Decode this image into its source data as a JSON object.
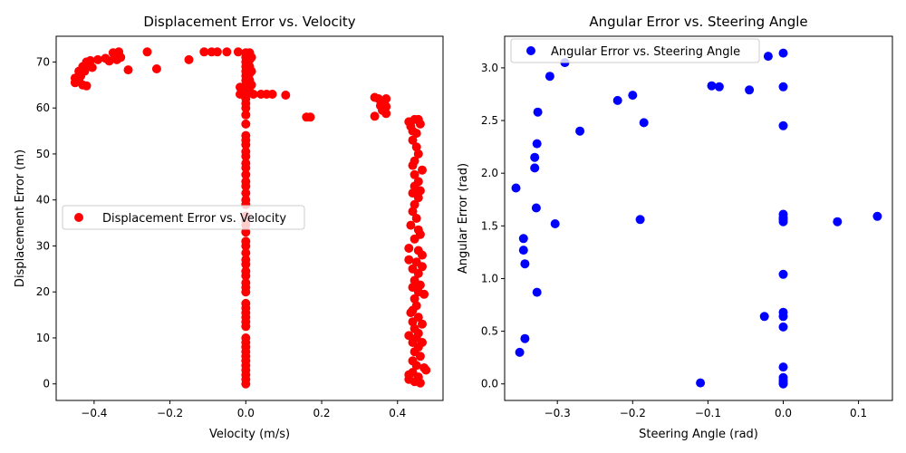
{
  "chart_data": [
    {
      "type": "scatter",
      "title": "Displacement Error vs. Velocity",
      "xlabel": "Velocity (m/s)",
      "ylabel": "Displacement Error (m)",
      "xlim": [
        -0.5,
        0.52
      ],
      "ylim": [
        -3.6,
        75.6
      ],
      "xticks": [
        -0.4,
        -0.2,
        0.0,
        0.2,
        0.4
      ],
      "xtick_labels": [
        "−0.4",
        "−0.2",
        "0.0",
        "0.2",
        "0.4"
      ],
      "yticks": [
        0,
        10,
        20,
        30,
        40,
        50,
        60,
        70
      ],
      "ytick_labels": [
        "0",
        "10",
        "20",
        "30",
        "40",
        "50",
        "60",
        "70"
      ],
      "grid": false,
      "legend_position": "center-left",
      "color": "#ff0000",
      "series": [
        {
          "name": "Displacement Error vs. Velocity",
          "points": [
            [
              -0.45,
              66.5
            ],
            [
              -0.45,
              65.5
            ],
            [
              -0.44,
              68.0
            ],
            [
              -0.44,
              66.0
            ],
            [
              -0.435,
              67.0
            ],
            [
              -0.43,
              69.0
            ],
            [
              -0.43,
              65.0
            ],
            [
              -0.425,
              68.0
            ],
            [
              -0.42,
              70.0
            ],
            [
              -0.42,
              64.8
            ],
            [
              -0.415,
              69.5
            ],
            [
              -0.41,
              70.3
            ],
            [
              -0.405,
              68.8
            ],
            [
              -0.39,
              70.5
            ],
            [
              -0.37,
              70.8
            ],
            [
              -0.36,
              70.2
            ],
            [
              -0.35,
              72.0
            ],
            [
              -0.345,
              71.2
            ],
            [
              -0.34,
              70.5
            ],
            [
              -0.335,
              72.2
            ],
            [
              -0.33,
              71.0
            ],
            [
              -0.31,
              68.3
            ],
            [
              -0.26,
              72.2
            ],
            [
              -0.235,
              68.5
            ],
            [
              -0.15,
              70.5
            ],
            [
              -0.11,
              72.2
            ],
            [
              -0.09,
              72.2
            ],
            [
              -0.075,
              72.2
            ],
            [
              -0.05,
              72.2
            ],
            [
              -0.02,
              72.2
            ],
            [
              -0.015,
              64.5
            ],
            [
              -0.015,
              63.0
            ],
            [
              -0.01,
              63.5
            ],
            [
              0.02,
              63.0
            ],
            [
              0.04,
              63.0
            ],
            [
              0.055,
              63.0
            ],
            [
              0.07,
              63.0
            ],
            [
              0.105,
              62.8
            ],
            [
              0.16,
              58.0
            ],
            [
              0.17,
              58.0
            ],
            [
              0.0,
              72.0
            ],
            [
              0.0,
              71.0
            ],
            [
              0.0,
              70.0
            ],
            [
              0.0,
              69.0
            ],
            [
              0.0,
              68.0
            ],
            [
              0.0,
              67.0
            ],
            [
              0.0,
              66.0
            ],
            [
              0.0,
              65.0
            ],
            [
              0.0,
              64.0
            ],
            [
              0.0,
              63.0
            ],
            [
              0.0,
              62.0
            ],
            [
              0.0,
              61.0
            ],
            [
              0.0,
              60.0
            ],
            [
              0.0,
              58.5
            ],
            [
              0.0,
              56.5
            ],
            [
              0.0,
              54.0
            ],
            [
              0.0,
              53.0
            ],
            [
              0.0,
              52.0
            ],
            [
              0.0,
              50.5
            ],
            [
              0.0,
              49.5
            ],
            [
              0.0,
              48.0
            ],
            [
              0.0,
              47.0
            ],
            [
              0.0,
              45.5
            ],
            [
              0.0,
              44.0
            ],
            [
              0.0,
              43.0
            ],
            [
              0.0,
              41.5
            ],
            [
              0.0,
              40.0
            ],
            [
              0.0,
              39.0
            ],
            [
              0.0,
              36.5
            ],
            [
              0.0,
              35.5
            ],
            [
              0.0,
              34.5
            ],
            [
              0.0,
              33.0
            ],
            [
              0.0,
              31.0
            ],
            [
              0.0,
              30.0
            ],
            [
              0.0,
              28.5
            ],
            [
              0.0,
              27.0
            ],
            [
              0.0,
              26.0
            ],
            [
              0.0,
              24.5
            ],
            [
              0.0,
              23.5
            ],
            [
              0.0,
              22.0
            ],
            [
              0.0,
              21.0
            ],
            [
              0.0,
              20.0
            ],
            [
              0.0,
              17.5
            ],
            [
              0.0,
              16.5
            ],
            [
              0.0,
              15.5
            ],
            [
              0.0,
              14.5
            ],
            [
              0.0,
              13.5
            ],
            [
              0.0,
              12.5
            ],
            [
              0.0,
              10.0
            ],
            [
              0.0,
              9.0
            ],
            [
              0.0,
              8.0
            ],
            [
              0.0,
              7.0
            ],
            [
              0.0,
              6.0
            ],
            [
              0.0,
              5.0
            ],
            [
              0.0,
              4.0
            ],
            [
              0.0,
              3.0
            ],
            [
              0.0,
              2.0
            ],
            [
              0.0,
              1.0
            ],
            [
              0.0,
              0.0
            ],
            [
              0.01,
              72.0
            ],
            [
              0.01,
              70.5
            ],
            [
              0.01,
              69.0
            ],
            [
              0.01,
              67.5
            ],
            [
              0.01,
              66.0
            ],
            [
              0.01,
              64.5
            ],
            [
              0.015,
              71.0
            ],
            [
              0.015,
              68.0
            ],
            [
              0.015,
              65.0
            ],
            [
              0.34,
              62.3
            ],
            [
              0.34,
              58.2
            ],
            [
              0.35,
              62.0
            ],
            [
              0.355,
              60.5
            ],
            [
              0.36,
              59.5
            ],
            [
              0.365,
              61.0
            ],
            [
              0.37,
              62.0
            ],
            [
              0.37,
              60.3
            ],
            [
              0.37,
              58.8
            ],
            [
              0.43,
              57.0
            ],
            [
              0.435,
              56.0
            ],
            [
              0.44,
              55.0
            ],
            [
              0.445,
              57.5
            ],
            [
              0.45,
              54.5
            ],
            [
              0.455,
              57.5
            ],
            [
              0.46,
              56.5
            ],
            [
              0.44,
              53.0
            ],
            [
              0.45,
              51.5
            ],
            [
              0.455,
              50.0
            ],
            [
              0.445,
              48.5
            ],
            [
              0.44,
              47.5
            ],
            [
              0.465,
              46.5
            ],
            [
              0.445,
              45.5
            ],
            [
              0.455,
              44.0
            ],
            [
              0.445,
              43.0
            ],
            [
              0.46,
              42.0
            ],
            [
              0.44,
              41.5
            ],
            [
              0.455,
              40.5
            ],
            [
              0.445,
              39.0
            ],
            [
              0.44,
              37.5
            ],
            [
              0.45,
              36.0
            ],
            [
              0.435,
              34.5
            ],
            [
              0.455,
              33.5
            ],
            [
              0.46,
              32.5
            ],
            [
              0.445,
              31.5
            ],
            [
              0.43,
              29.5
            ],
            [
              0.455,
              29.0
            ],
            [
              0.465,
              28.0
            ],
            [
              0.43,
              27.0
            ],
            [
              0.45,
              26.5
            ],
            [
              0.465,
              25.5
            ],
            [
              0.44,
              25.0
            ],
            [
              0.455,
              24.0
            ],
            [
              0.445,
              22.5
            ],
            [
              0.46,
              21.5
            ],
            [
              0.44,
              21.0
            ],
            [
              0.455,
              20.0
            ],
            [
              0.47,
              19.5
            ],
            [
              0.445,
              18.5
            ],
            [
              0.45,
              17.0
            ],
            [
              0.44,
              16.0
            ],
            [
              0.435,
              15.5
            ],
            [
              0.455,
              14.5
            ],
            [
              0.44,
              13.5
            ],
            [
              0.465,
              13.0
            ],
            [
              0.445,
              12.0
            ],
            [
              0.455,
              11.0
            ],
            [
              0.43,
              10.5
            ],
            [
              0.45,
              10.0
            ],
            [
              0.44,
              9.0
            ],
            [
              0.465,
              9.0
            ],
            [
              0.455,
              8.0
            ],
            [
              0.445,
              7.0
            ],
            [
              0.46,
              6.0
            ],
            [
              0.44,
              5.0
            ],
            [
              0.45,
              4.0
            ],
            [
              0.47,
              3.5
            ],
            [
              0.475,
              3.0
            ],
            [
              0.44,
              2.5
            ],
            [
              0.43,
              2.0
            ],
            [
              0.455,
              1.5
            ],
            [
              0.43,
              1.0
            ],
            [
              0.445,
              0.5
            ],
            [
              0.46,
              0.2
            ]
          ]
        }
      ]
    },
    {
      "type": "scatter",
      "title": "Angular Error vs. Steering Angle",
      "xlabel": "Steering Angle (rad)",
      "ylabel": "Angular Error (rad)",
      "xlim": [
        -0.37,
        0.145
      ],
      "ylim": [
        -0.157,
        3.3
      ],
      "xticks": [
        -0.3,
        -0.2,
        -0.1,
        0.0,
        0.1
      ],
      "xtick_labels": [
        "−0.3",
        "−0.2",
        "−0.1",
        "0.0",
        "0.1"
      ],
      "yticks": [
        0.0,
        0.5,
        1.0,
        1.5,
        2.0,
        2.5,
        3.0
      ],
      "ytick_labels": [
        "0.0",
        "0.5",
        "1.0",
        "1.5",
        "2.0",
        "2.5",
        "3.0"
      ],
      "grid": false,
      "legend_position": "upper-left",
      "color": "#0000ff",
      "series": [
        {
          "name": "Angular Error vs. Steering Angle",
          "points": [
            [
              -0.355,
              1.86
            ],
            [
              -0.35,
              0.3
            ],
            [
              -0.345,
              1.38
            ],
            [
              -0.345,
              1.27
            ],
            [
              -0.343,
              1.14
            ],
            [
              -0.343,
              0.43
            ],
            [
              -0.33,
              2.15
            ],
            [
              -0.33,
              2.05
            ],
            [
              -0.328,
              1.67
            ],
            [
              -0.327,
              2.28
            ],
            [
              -0.326,
              2.58
            ],
            [
              -0.327,
              0.87
            ],
            [
              -0.31,
              2.92
            ],
            [
              -0.303,
              1.52
            ],
            [
              -0.29,
              3.05
            ],
            [
              -0.27,
              2.4
            ],
            [
              -0.22,
              2.69
            ],
            [
              -0.2,
              2.74
            ],
            [
              -0.19,
              1.56
            ],
            [
              -0.185,
              2.48
            ],
            [
              -0.11,
              0.01
            ],
            [
              -0.095,
              2.83
            ],
            [
              -0.085,
              2.82
            ],
            [
              -0.045,
              2.79
            ],
            [
              -0.025,
              0.64
            ],
            [
              -0.02,
              3.11
            ],
            [
              0.0,
              3.14
            ],
            [
              0.0,
              2.82
            ],
            [
              0.0,
              2.45
            ],
            [
              0.0,
              1.61
            ],
            [
              0.0,
              1.58
            ],
            [
              0.0,
              1.56
            ],
            [
              0.0,
              1.54
            ],
            [
              0.0,
              1.04
            ],
            [
              0.0,
              0.68
            ],
            [
              0.0,
              0.64
            ],
            [
              0.0,
              0.54
            ],
            [
              0.0,
              0.16
            ],
            [
              0.0,
              0.06
            ],
            [
              0.0,
              0.03
            ],
            [
              0.0,
              0.01
            ],
            [
              0.0,
              0.0
            ],
            [
              0.072,
              1.54
            ],
            [
              0.125,
              1.59
            ]
          ]
        }
      ]
    }
  ]
}
